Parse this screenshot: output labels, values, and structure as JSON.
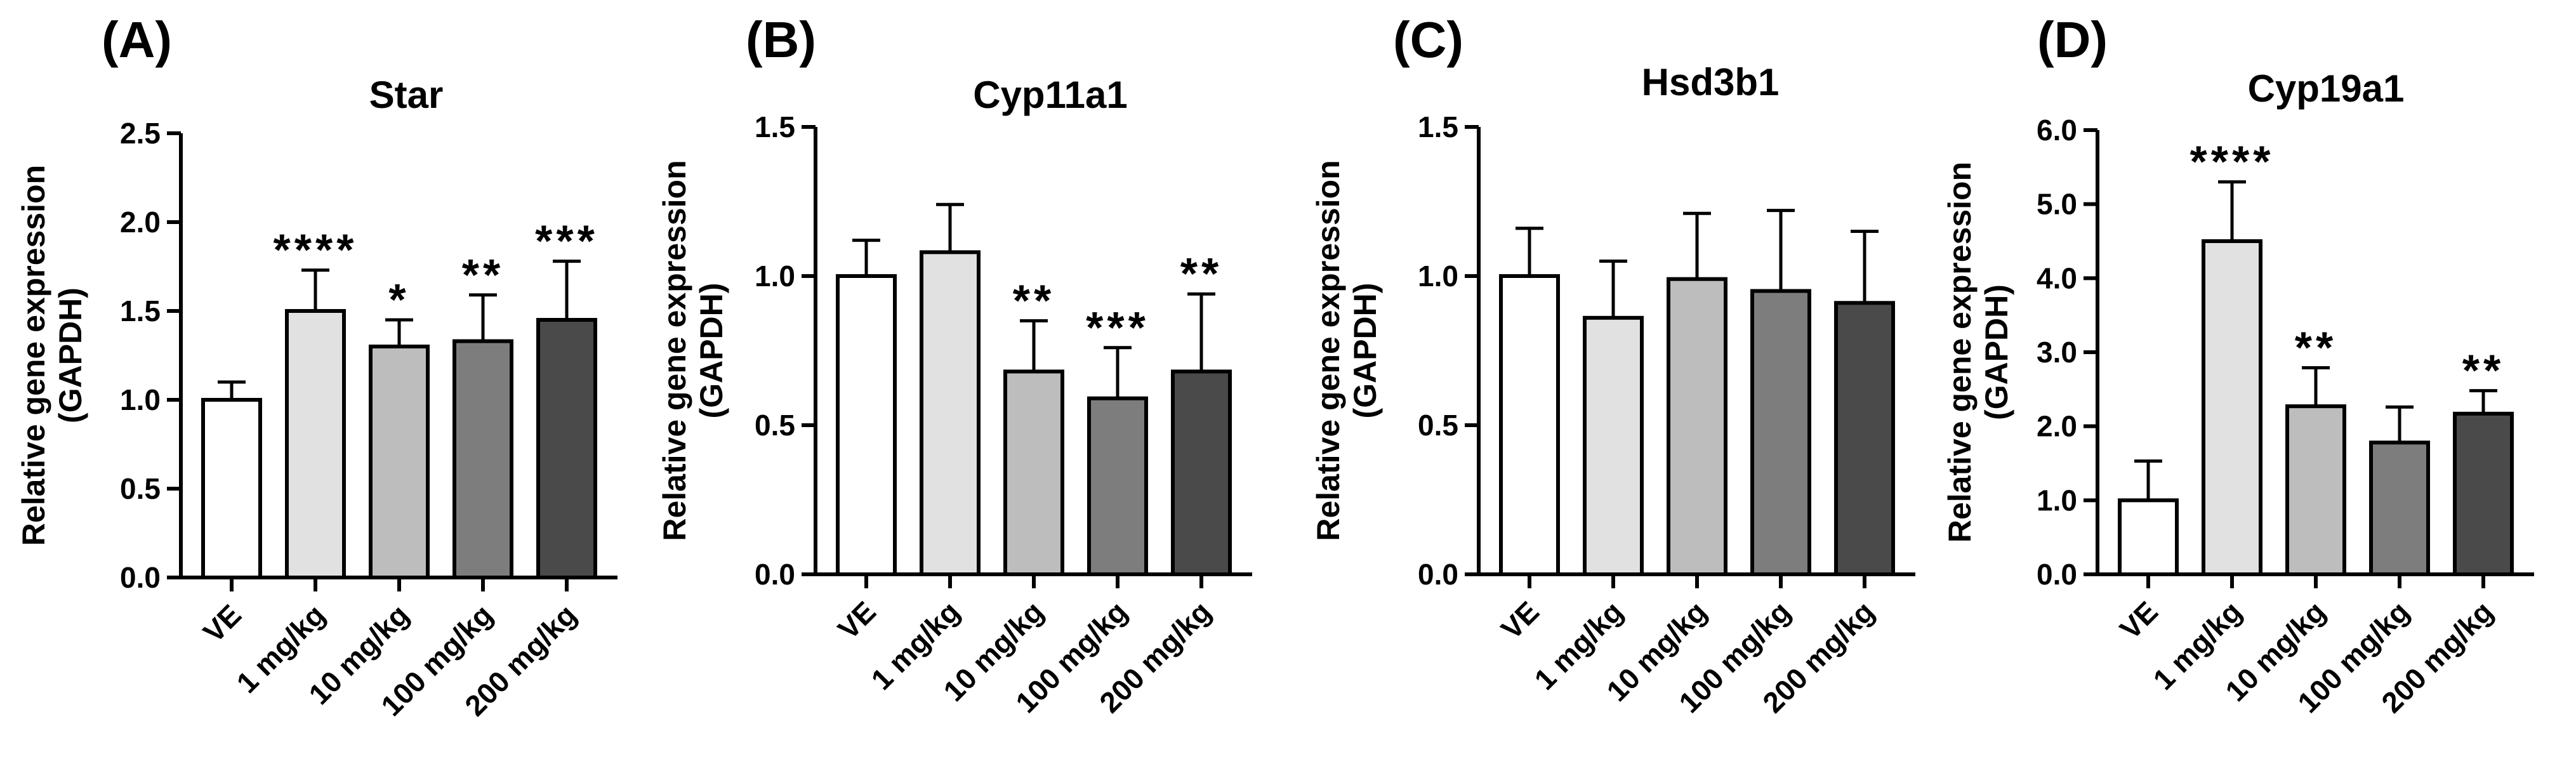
{
  "chart_data": [
    {
      "panel": "(A)",
      "type": "bar",
      "title": "Star",
      "ylabel": [
        "Relative gene expression",
        "(GAPDH)"
      ],
      "ylim": [
        0,
        2.5
      ],
      "yticks": [
        "0.0",
        "0.5",
        "1.0",
        "1.5",
        "2.0",
        "2.5"
      ],
      "categories": [
        "VE",
        "1 mg/kg",
        "10 mg/kg",
        "100 mg/kg",
        "200 mg/kg"
      ],
      "values": [
        1.0,
        1.5,
        1.3,
        1.33,
        1.45
      ],
      "errors": [
        0.1,
        0.23,
        0.15,
        0.26,
        0.33
      ],
      "significance": [
        "",
        "****",
        "*",
        "**",
        "***"
      ],
      "colors": [
        "#ffffff",
        "#e1e1e1",
        "#bdbdbd",
        "#7d7d7d",
        "#4a4a4a"
      ]
    },
    {
      "panel": "(B)",
      "type": "bar",
      "title": "Cyp11a1",
      "ylabel": [
        "Relative gene expression",
        "(GAPDH)"
      ],
      "ylim": [
        0,
        1.5
      ],
      "yticks": [
        "0.0",
        "0.5",
        "1.0",
        "1.5"
      ],
      "categories": [
        "VE",
        "1 mg/kg",
        "10 mg/kg",
        "100 mg/kg",
        "200 mg/kg"
      ],
      "values": [
        1.0,
        1.08,
        0.68,
        0.59,
        0.68
      ],
      "errors": [
        0.12,
        0.16,
        0.17,
        0.17,
        0.26
      ],
      "significance": [
        "",
        "",
        "**",
        "***",
        "**"
      ],
      "colors": [
        "#ffffff",
        "#e1e1e1",
        "#bdbdbd",
        "#7d7d7d",
        "#4a4a4a"
      ]
    },
    {
      "panel": "(C)",
      "type": "bar",
      "title": "Hsd3b1",
      "ylabel": [
        "Relative gene expression",
        "(GAPDH)"
      ],
      "ylim": [
        0,
        1.5
      ],
      "yticks": [
        "0.0",
        "0.5",
        "1.0",
        "1.5"
      ],
      "categories": [
        "VE",
        "1 mg/kg",
        "10 mg/kg",
        "100 mg/kg",
        "200 mg/kg"
      ],
      "values": [
        1.0,
        0.86,
        0.99,
        0.95,
        0.91
      ],
      "errors": [
        0.16,
        0.19,
        0.22,
        0.27,
        0.24
      ],
      "significance": [
        "",
        "",
        "",
        "",
        ""
      ],
      "colors": [
        "#ffffff",
        "#e1e1e1",
        "#bdbdbd",
        "#7d7d7d",
        "#4a4a4a"
      ]
    },
    {
      "panel": "(D)",
      "type": "bar",
      "title": "Cyp19a1",
      "ylabel": [
        "Relative gene expression",
        "(GAPDH)"
      ],
      "ylim": [
        0,
        6
      ],
      "yticks": [
        "0.0",
        "1.0",
        "2.0",
        "3.0",
        "4.0",
        "5.0",
        "6.0"
      ],
      "categories": [
        "VE",
        "1 mg/kg",
        "10 mg/kg",
        "100 mg/kg",
        "200 mg/kg"
      ],
      "values": [
        1.0,
        4.5,
        2.27,
        1.78,
        2.17
      ],
      "errors": [
        0.53,
        0.8,
        0.52,
        0.48,
        0.31
      ],
      "significance": [
        "",
        "****",
        "**",
        "",
        "**"
      ],
      "colors": [
        "#ffffff",
        "#e1e1e1",
        "#bdbdbd",
        "#7d7d7d",
        "#4a4a4a"
      ]
    }
  ]
}
